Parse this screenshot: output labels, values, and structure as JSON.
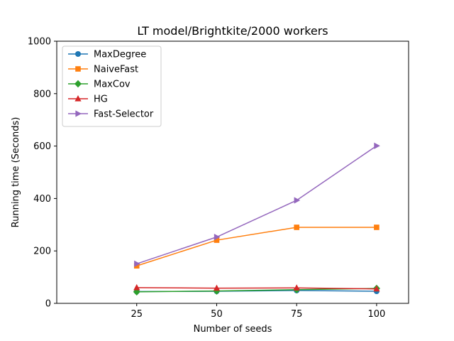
{
  "chart_data": {
    "type": "line",
    "title": "LT model/Brightkite/2000 workers",
    "xlabel": "Number of seeds",
    "ylabel": "Running time (Seconds)",
    "x": [
      25,
      50,
      75,
      100
    ],
    "x_ticks": [
      "25",
      "50",
      "75",
      "100"
    ],
    "xlim": [
      0,
      110
    ],
    "ylim": [
      0,
      1000
    ],
    "y_ticks": [
      "0",
      "200",
      "400",
      "600",
      "800",
      "1000"
    ],
    "grid": false,
    "legend_position": "top-left",
    "series": [
      {
        "name": "MaxDegree",
        "color": "#1f77b4",
        "marker": "circle",
        "values": [
          45,
          46,
          49,
          46
        ]
      },
      {
        "name": "NaiveFast",
        "color": "#ff7f0e",
        "marker": "square",
        "values": [
          143,
          241,
          290,
          290
        ]
      },
      {
        "name": "MaxCov",
        "color": "#2ca02c",
        "marker": "diamond",
        "values": [
          44,
          47,
          52,
          57
        ]
      },
      {
        "name": "HG",
        "color": "#d62728",
        "marker": "triangle-up",
        "values": [
          60,
          58,
          59,
          55
        ]
      },
      {
        "name": "Fast-Selector",
        "color": "#9467bd",
        "marker": "triangle-right",
        "values": [
          151,
          253,
          393,
          601
        ]
      }
    ]
  }
}
